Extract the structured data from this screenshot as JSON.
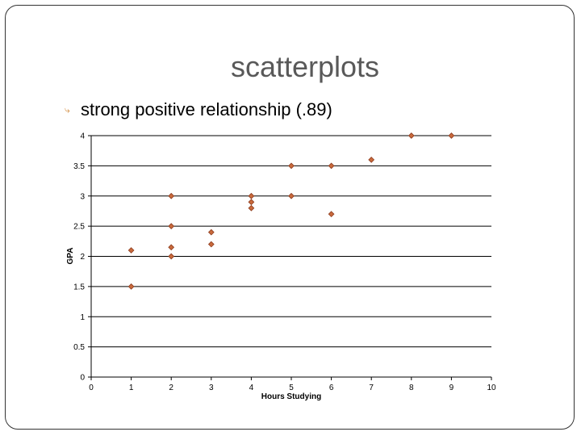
{
  "slide": {
    "title": "scatterplots",
    "bullet": "strong positive relationship (.89)"
  },
  "colors": {
    "marker_fill": "#c96a3c",
    "marker_stroke": "#8c3a1c",
    "bullet": "#d28a3c",
    "title": "#595959"
  },
  "icons": {
    "bullet": "curved-arrow-bullet-icon"
  },
  "chart_data": {
    "type": "scatter",
    "xlabel": "Hours Studying",
    "ylabel": "GPA",
    "xlim": [
      0,
      10
    ],
    "ylim": [
      0,
      4
    ],
    "x_ticks": [
      "0",
      "1",
      "2",
      "3",
      "4",
      "5",
      "6",
      "7",
      "8",
      "9",
      "10"
    ],
    "y_ticks": [
      "0",
      "0.5",
      "1",
      "1.5",
      "2",
      "2.5",
      "3",
      "3.5",
      "4"
    ],
    "grid": "horizontal",
    "legend": "none",
    "points": [
      {
        "x": 1,
        "y": 2.1
      },
      {
        "x": 1,
        "y": 1.5
      },
      {
        "x": 2,
        "y": 3.0
      },
      {
        "x": 2,
        "y": 2.5
      },
      {
        "x": 2,
        "y": 2.15
      },
      {
        "x": 2,
        "y": 2.0
      },
      {
        "x": 3,
        "y": 2.4
      },
      {
        "x": 3,
        "y": 2.2
      },
      {
        "x": 4,
        "y": 3.0
      },
      {
        "x": 4,
        "y": 2.9
      },
      {
        "x": 4,
        "y": 2.8
      },
      {
        "x": 5,
        "y": 3.5
      },
      {
        "x": 5,
        "y": 3.0
      },
      {
        "x": 6,
        "y": 3.5
      },
      {
        "x": 6,
        "y": 2.7
      },
      {
        "x": 7,
        "y": 3.6
      },
      {
        "x": 8,
        "y": 4.0
      },
      {
        "x": 9,
        "y": 4.0
      }
    ]
  }
}
